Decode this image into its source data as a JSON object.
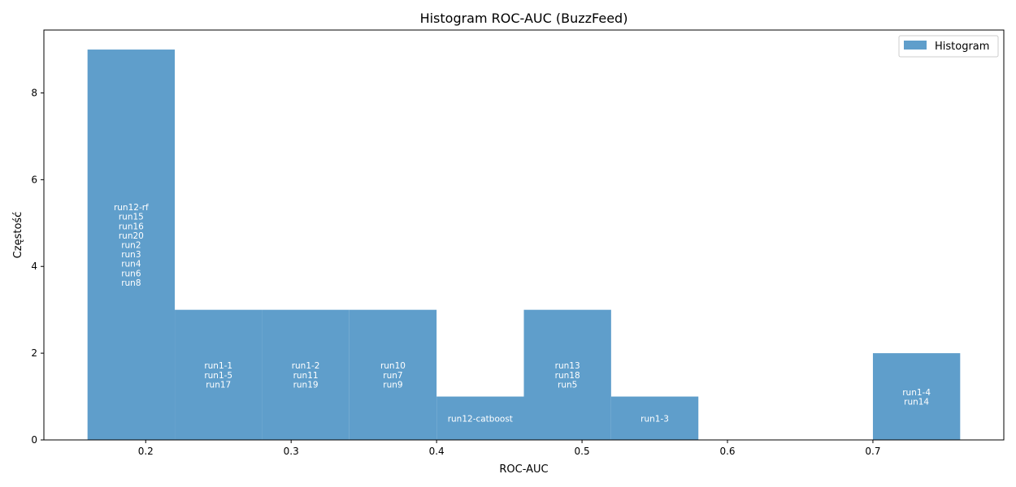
{
  "chart_data": {
    "type": "bar",
    "title": "Histogram ROC-AUC (BuzzFeed)",
    "xlabel": "ROC-AUC",
    "ylabel": "Częstość",
    "xlim": [
      0.13,
      0.79
    ],
    "ylim": [
      0,
      9.45
    ],
    "xticks": [
      0.2,
      0.3,
      0.4,
      0.5,
      0.6,
      0.7
    ],
    "xtick_labels": [
      "0.2",
      "0.3",
      "0.4",
      "0.5",
      "0.6",
      "0.7"
    ],
    "yticks": [
      0,
      2,
      4,
      6,
      8
    ],
    "ytick_labels": [
      "0",
      "2",
      "4",
      "6",
      "8"
    ],
    "grid": false,
    "legend": {
      "position": "top-right",
      "entries": [
        "Histogram"
      ]
    },
    "color": "#5f9ecb",
    "bins": [
      {
        "x0": 0.16,
        "x1": 0.22,
        "count": 9,
        "labels": [
          "run12-rf",
          "run15",
          "run16",
          "run20",
          "run2",
          "run3",
          "run4",
          "run6",
          "run8"
        ]
      },
      {
        "x0": 0.22,
        "x1": 0.28,
        "count": 3,
        "labels": [
          "run1-1",
          "run1-5",
          "run17"
        ]
      },
      {
        "x0": 0.28,
        "x1": 0.34,
        "count": 3,
        "labels": [
          "run1-2",
          "run11",
          "run19"
        ]
      },
      {
        "x0": 0.34,
        "x1": 0.4,
        "count": 3,
        "labels": [
          "run10",
          "run7",
          "run9"
        ]
      },
      {
        "x0": 0.4,
        "x1": 0.46,
        "count": 1,
        "labels": [
          "run12-catboost"
        ]
      },
      {
        "x0": 0.46,
        "x1": 0.52,
        "count": 3,
        "labels": [
          "run13",
          "run18",
          "run5"
        ]
      },
      {
        "x0": 0.52,
        "x1": 0.58,
        "count": 1,
        "labels": [
          "run1-3"
        ]
      },
      {
        "x0": 0.58,
        "x1": 0.64,
        "count": 0,
        "labels": []
      },
      {
        "x0": 0.64,
        "x1": 0.7,
        "count": 0,
        "labels": []
      },
      {
        "x0": 0.7,
        "x1": 0.76,
        "count": 2,
        "labels": [
          "run1-4",
          "run14"
        ]
      }
    ]
  }
}
